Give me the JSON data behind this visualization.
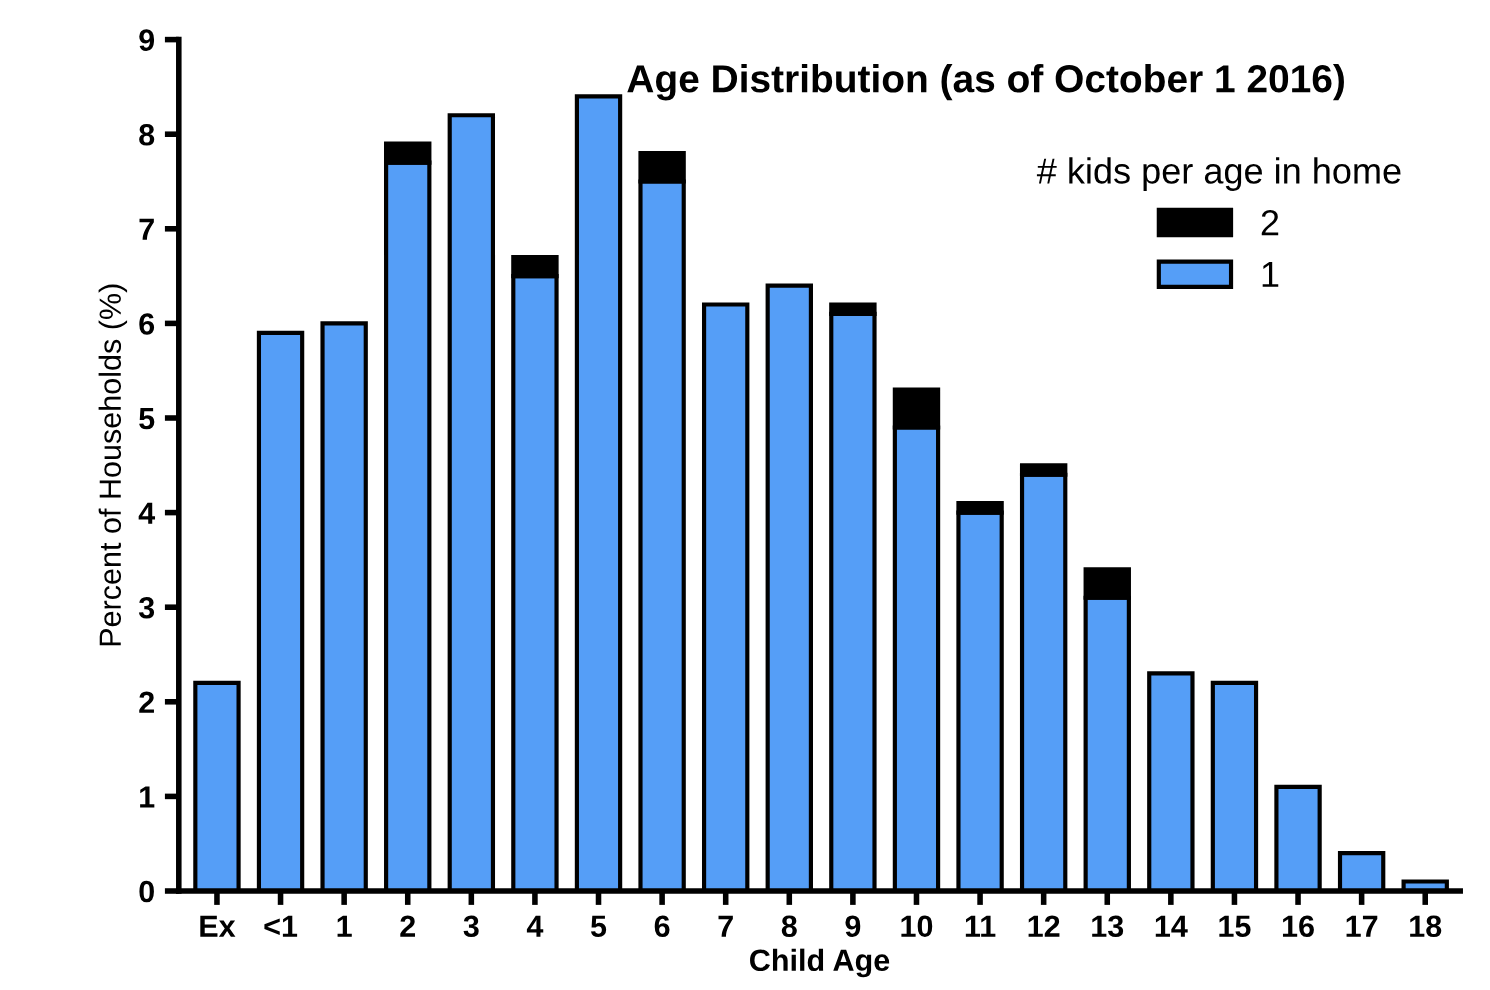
{
  "chart_data": {
    "type": "bar",
    "title": "Age Distribution (as of October 1 2016)",
    "xlabel": "Child Age",
    "ylabel": "Percent of Households (%)",
    "legend_title": "# kids per age in home",
    "categories": [
      "Ex",
      "<1",
      "1",
      "2",
      "3",
      "4",
      "5",
      "6",
      "7",
      "8",
      "9",
      "10",
      "11",
      "12",
      "13",
      "14",
      "15",
      "16",
      "17",
      "18"
    ],
    "stacked": true,
    "series": [
      {
        "name": "1",
        "color": "#559ef7",
        "values": [
          2.2,
          5.9,
          6.0,
          7.7,
          8.2,
          6.5,
          8.4,
          7.5,
          6.2,
          6.4,
          6.1,
          4.9,
          4.0,
          4.4,
          3.1,
          2.3,
          2.2,
          1.1,
          0.4,
          0.1
        ]
      },
      {
        "name": "2",
        "color": "#000000",
        "values": [
          0,
          0,
          0,
          0.2,
          0,
          0.2,
          0,
          0.3,
          0,
          0,
          0.1,
          0.4,
          0.1,
          0.1,
          0.3,
          0,
          0,
          0,
          0,
          0
        ]
      }
    ],
    "ylim": [
      0,
      9
    ],
    "yticks": [
      0,
      1,
      2,
      3,
      4,
      5,
      6,
      7,
      8,
      9
    ],
    "grid": false,
    "legend": "top right"
  }
}
